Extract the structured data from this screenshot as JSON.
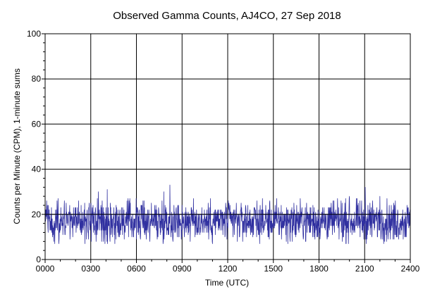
{
  "colors": {
    "background": "#ffffff",
    "plot_background": "#ffffff",
    "grid": "#000000",
    "series": "#3030a0"
  },
  "chart_data": {
    "type": "line",
    "title": "Observed Gamma Counts, AJ4CO, 27 Sep 2018",
    "xlabel": "Time (UTC)",
    "ylabel": "Counts per Minute (CPM), 1-minute sums",
    "xlim": [
      0,
      1440
    ],
    "ylim": [
      0,
      100
    ],
    "x_unit": "minutes after 0000 UTC, 1-minute samples",
    "x_ticks": [
      0,
      180,
      360,
      540,
      720,
      900,
      1080,
      1260,
      1440
    ],
    "x_tick_labels": [
      "0000",
      "0300",
      "0600",
      "0900",
      "1200",
      "1500",
      "1800",
      "2100",
      "2400"
    ],
    "y_ticks": [
      0,
      20,
      40,
      60,
      80,
      100
    ],
    "y_tick_labels": [
      "0",
      "20",
      "40",
      "60",
      "80",
      "100"
    ],
    "grid": true,
    "reference_line": 20,
    "series": [
      {
        "mean_cpm": 17,
        "min_cpm": 7,
        "max_cpm": 33,
        "peaks": [
          {
            "x": 210,
            "y": 30
          },
          {
            "x": 245,
            "y": 31
          },
          {
            "x": 468,
            "y": 30
          },
          {
            "x": 492,
            "y": 33
          },
          {
            "x": 1200,
            "y": 28
          },
          {
            "x": 1262,
            "y": 32
          },
          {
            "x": 1320,
            "y": 28
          }
        ]
      }
    ]
  }
}
